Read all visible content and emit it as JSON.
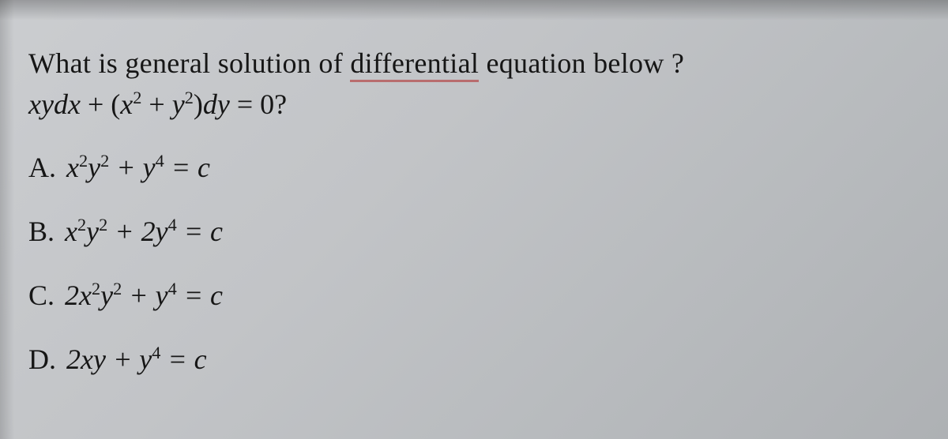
{
  "palette": {
    "background_top_left": "#cbcdd0",
    "background_bottom_right": "#aeb1b4",
    "text_color": "#141414",
    "underline_color": "#b24040"
  },
  "typography": {
    "font_family": "Times New Roman / Cambria Math (serif, italic for math)",
    "question_fontsize_pt": 27,
    "math_fontsize_pt": 27
  },
  "question": {
    "pre": "What is general solution of ",
    "underlined_word": "differential",
    "post": " equation below ?"
  },
  "equation": {
    "display": "xydx + (x² + y²)dy = 0?",
    "lhs_parts": [
      "xy",
      "dx",
      " + (",
      "x",
      "2",
      " + ",
      "y",
      "2",
      ")",
      "dy"
    ],
    "rhs": " = 0?"
  },
  "options": [
    {
      "letter": "A.",
      "expr_html": "x<sup>2</sup>y<sup>2</sup> +  y<sup>4</sup> = c",
      "plain": "x^2 y^2 + y^4 = c"
    },
    {
      "letter": "B.",
      "expr_html": "x<sup>2</sup>y<sup>2</sup> +  2y<sup>4</sup> = c",
      "plain": "x^2 y^2 + 2 y^4 = c"
    },
    {
      "letter": "C.",
      "expr_html": "2x<sup>2</sup>y<sup>2</sup> +  y<sup>4</sup> = c",
      "plain": "2 x^2 y^2 + y^4 = c"
    },
    {
      "letter": "D.",
      "expr_html": "2xy +  y<sup>4</sup> = c",
      "plain": "2 x y + y^4 = c"
    }
  ]
}
